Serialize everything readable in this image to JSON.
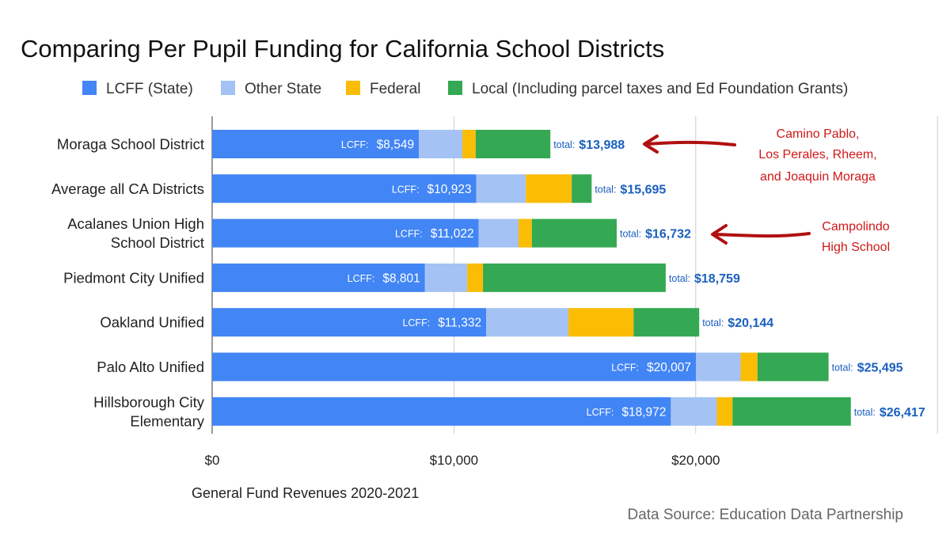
{
  "chart_data": {
    "type": "bar",
    "orientation": "horizontal",
    "stacked": true,
    "title": "Comparing Per Pupil Funding for California School Districts",
    "xlabel": "General Fund Revenues 2020-2021",
    "source": "Data Source:  Education Data Partnership",
    "xlim": [
      0,
      30000
    ],
    "xticks": [
      {
        "value": 0,
        "label": "$0"
      },
      {
        "value": 10000,
        "label": "$10,000"
      },
      {
        "value": 20000,
        "label": "$20,000"
      }
    ],
    "grid": true,
    "legend_position": "top",
    "categories": [
      [
        "Moraga School District"
      ],
      [
        "Average all CA Districts"
      ],
      [
        "Acalanes Union High",
        "School District"
      ],
      [
        "Piedmont City Unified"
      ],
      [
        "Oakland Unified"
      ],
      [
        "Palo Alto Unified"
      ],
      [
        "Hillsborough City",
        "Elementary"
      ]
    ],
    "series": [
      {
        "name": "LCFF (State)",
        "color": "#4285f4",
        "values": [
          8549,
          10923,
          11022,
          8801,
          11332,
          20007,
          18972
        ]
      },
      {
        "name": "Other State",
        "color": "#a4c2f4",
        "values": [
          1800,
          2050,
          1650,
          1750,
          3400,
          1850,
          1900
        ]
      },
      {
        "name": "Federal",
        "color": "#fbbc04",
        "values": [
          550,
          1900,
          550,
          650,
          2700,
          700,
          650
        ]
      },
      {
        "name": "Local (Including parcel taxes and Ed Foundation Grants)",
        "color": "#34a853",
        "values": [
          3089,
          822,
          3510,
          7558,
          2712,
          2938,
          4895
        ]
      }
    ],
    "lcff_label_prefix": "LCFF:",
    "lcff_labels": [
      "$8,549",
      "$10,923",
      "$11,022",
      "$8,801",
      "$11,332",
      "$20,007",
      "$18,972"
    ],
    "total_label_prefix": "total:",
    "total_labels": [
      "$13,988",
      "$15,695",
      "$16,732",
      "$18,759",
      "$20,144",
      "$25,495",
      "$26,417"
    ],
    "totals": [
      13988,
      15695,
      16732,
      18759,
      20144,
      25495,
      26417
    ],
    "annotations": [
      {
        "category_index": 0,
        "lines": [
          "Camino Pablo,",
          "Los Perales, Rheem,",
          "and Joaquin Moraga"
        ]
      },
      {
        "category_index": 2,
        "lines": [
          "Campolindo",
          "High School"
        ]
      }
    ]
  },
  "colors": {
    "annotation": "#d01818",
    "total_label": "#1a5fbf",
    "gridline": "#cccccc"
  }
}
